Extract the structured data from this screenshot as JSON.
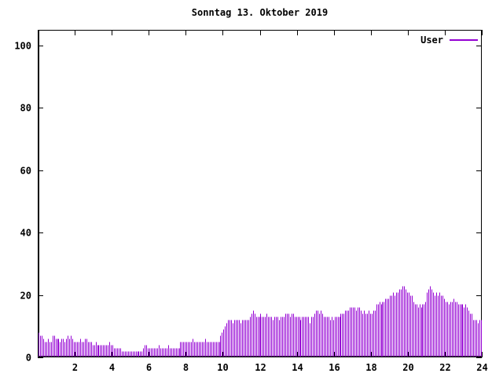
{
  "window": {
    "title": "Sonntag 13. Oktober 2019"
  },
  "legend": {
    "label": "User"
  },
  "colors": {
    "series": "#9400D3",
    "axis": "#000000",
    "text": "#000000",
    "background": "#FFFFFF"
  },
  "chart_data": {
    "type": "bar",
    "style": "impulses",
    "title": "Sonntag 13. Oktober 2019",
    "xlabel": "",
    "ylabel": "",
    "x_unit": "hour_of_day",
    "sample_interval_minutes": 5,
    "x_range": [
      0,
      24
    ],
    "y_range": [
      0,
      105
    ],
    "x_ticks": [
      2,
      4,
      6,
      8,
      10,
      12,
      14,
      16,
      18,
      20,
      22,
      24
    ],
    "y_ticks": [
      0,
      20,
      40,
      60,
      80,
      100
    ],
    "grid": false,
    "legend_position": "top-right",
    "series": [
      {
        "name": "User",
        "color": "#9400D3",
        "values": [
          8,
          7,
          7,
          6,
          5,
          5,
          6,
          5,
          5,
          7,
          7,
          6,
          6,
          6,
          5,
          6,
          6,
          5,
          6,
          7,
          6,
          7,
          6,
          5,
          5,
          5,
          5,
          6,
          5,
          5,
          6,
          6,
          5,
          5,
          5,
          4,
          4,
          5,
          4,
          4,
          4,
          4,
          4,
          4,
          4,
          4,
          5,
          4,
          4,
          3,
          3,
          3,
          3,
          3,
          2,
          2,
          2,
          2,
          2,
          2,
          2,
          2,
          2,
          2,
          2,
          2,
          2,
          2,
          3,
          4,
          4,
          3,
          3,
          3,
          3,
          3,
          3,
          3,
          4,
          3,
          3,
          3,
          3,
          3,
          4,
          3,
          3,
          3,
          3,
          3,
          3,
          3,
          5,
          5,
          5,
          5,
          5,
          5,
          5,
          5,
          6,
          5,
          5,
          5,
          5,
          5,
          5,
          5,
          6,
          5,
          5,
          5,
          5,
          5,
          5,
          5,
          5,
          5,
          7,
          8,
          9,
          10,
          11,
          12,
          12,
          12,
          11,
          12,
          12,
          12,
          12,
          11,
          12,
          12,
          12,
          12,
          12,
          13,
          14,
          15,
          14,
          13,
          13,
          13,
          14,
          13,
          13,
          13,
          14,
          13,
          13,
          13,
          12,
          13,
          13,
          13,
          12,
          13,
          13,
          13,
          14,
          14,
          14,
          13,
          14,
          14,
          13,
          13,
          13,
          13,
          12,
          13,
          13,
          13,
          13,
          13,
          11,
          13,
          13,
          14,
          15,
          15,
          14,
          15,
          14,
          13,
          13,
          13,
          13,
          12,
          13,
          12,
          13,
          13,
          13,
          13,
          14,
          14,
          14,
          15,
          15,
          15,
          16,
          16,
          16,
          16,
          15,
          16,
          16,
          15,
          14,
          15,
          14,
          14,
          15,
          14,
          14,
          15,
          15,
          17,
          17,
          18,
          17,
          18,
          18,
          19,
          19,
          19,
          20,
          20,
          21,
          20,
          21,
          21,
          22,
          22,
          23,
          23,
          22,
          21,
          21,
          20,
          20,
          18,
          17,
          17,
          16,
          17,
          16,
          17,
          17,
          18,
          21,
          22,
          23,
          22,
          21,
          20,
          21,
          20,
          21,
          20,
          20,
          19,
          18,
          18,
          17,
          18,
          18,
          19,
          18,
          18,
          17,
          17,
          17,
          17,
          16,
          17,
          16,
          15,
          14,
          14,
          12,
          12,
          12,
          11,
          12,
          12
        ]
      }
    ]
  }
}
